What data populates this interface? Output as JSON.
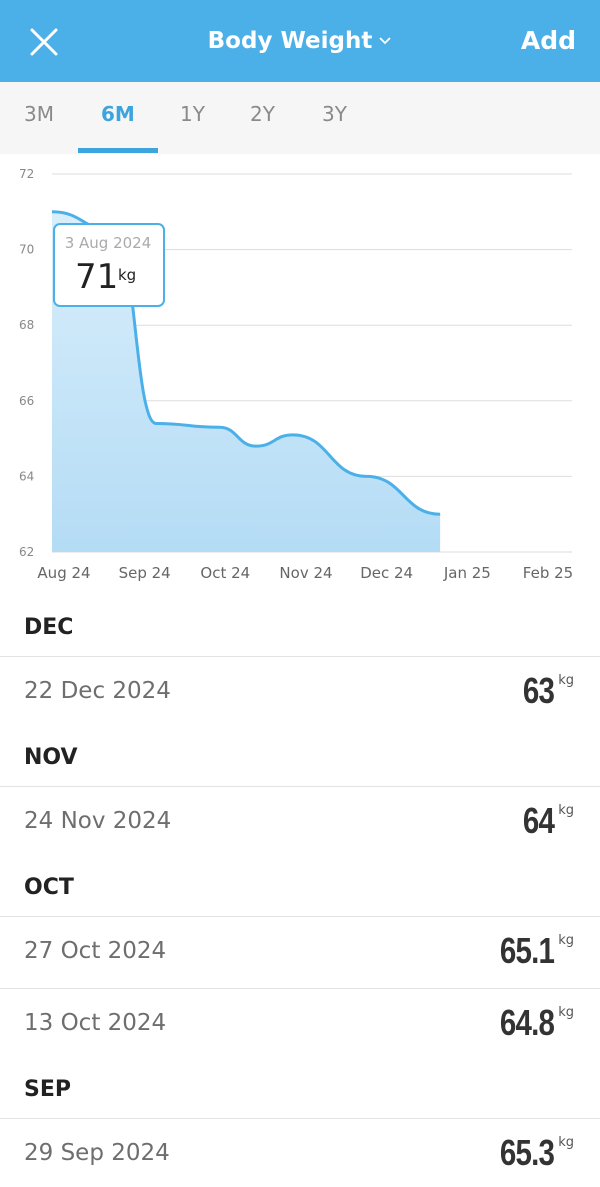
{
  "header": {
    "title": "Body Weight",
    "add_label": "Add"
  },
  "tabs": [
    {
      "label": "3M",
      "active": false
    },
    {
      "label": "6M",
      "active": true
    },
    {
      "label": "1Y",
      "active": false
    },
    {
      "label": "2Y",
      "active": false
    },
    {
      "label": "3Y",
      "active": false
    }
  ],
  "chart_data": {
    "type": "area",
    "y_ticks": [
      "72",
      "70",
      "68",
      "66",
      "64",
      "62"
    ],
    "ylim": [
      62,
      72
    ],
    "x_ticks": [
      "Aug 24",
      "Sep 24",
      "Oct 24",
      "Nov 24",
      "Dec 24",
      "Jan 25",
      "Feb 25"
    ],
    "points": [
      {
        "x": "2024-08-03",
        "y": 71
      },
      {
        "x": "2024-08-20",
        "y": 70.5
      },
      {
        "x": "2024-09-05",
        "y": 65.4
      },
      {
        "x": "2024-09-29",
        "y": 65.3
      },
      {
        "x": "2024-10-13",
        "y": 64.8
      },
      {
        "x": "2024-10-27",
        "y": 65.1
      },
      {
        "x": "2024-11-24",
        "y": 64
      },
      {
        "x": "2024-12-22",
        "y": 63
      }
    ],
    "tooltip": {
      "date": "3 Aug 2024",
      "value": "71",
      "unit": "kg"
    },
    "line_color": "#4cb0e8",
    "fill_color": "#b4dcf5"
  },
  "list": {
    "unit": "kg",
    "sections": [
      {
        "month": "DEC",
        "entries": [
          {
            "date": "22 Dec 2024",
            "value": "63"
          }
        ]
      },
      {
        "month": "NOV",
        "entries": [
          {
            "date": "24 Nov 2024",
            "value": "64"
          }
        ]
      },
      {
        "month": "OCT",
        "entries": [
          {
            "date": "27 Oct 2024",
            "value": "65.1"
          },
          {
            "date": "13 Oct 2024",
            "value": "64.8"
          }
        ]
      },
      {
        "month": "SEP",
        "entries": [
          {
            "date": "29 Sep 2024",
            "value": "65.3"
          }
        ]
      }
    ]
  }
}
